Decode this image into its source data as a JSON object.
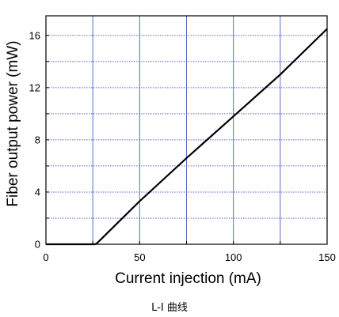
{
  "chart_data": {
    "type": "line",
    "xlabel": "Current injection (mA)",
    "ylabel": "Fiber output power (mW)",
    "xlim": [
      0,
      150
    ],
    "ylim": [
      0,
      17.5
    ],
    "xticks": [
      0,
      50,
      100,
      150
    ],
    "yticks": [
      0,
      4,
      8,
      12,
      16
    ],
    "grid": true,
    "grid_x_step": 25,
    "grid_y_step": 2,
    "series": [
      {
        "color": "#000000",
        "x": [
          0,
          26,
          27,
          50,
          75,
          100,
          125,
          140,
          150
        ],
        "y": [
          0,
          0,
          0.05,
          3.3,
          6.6,
          9.8,
          13.0,
          15.1,
          16.5
        ]
      }
    ]
  },
  "colors": {
    "grid": "#5a6ad0",
    "axis": "#000000",
    "line": "#000000"
  },
  "caption": "L-I 曲线"
}
